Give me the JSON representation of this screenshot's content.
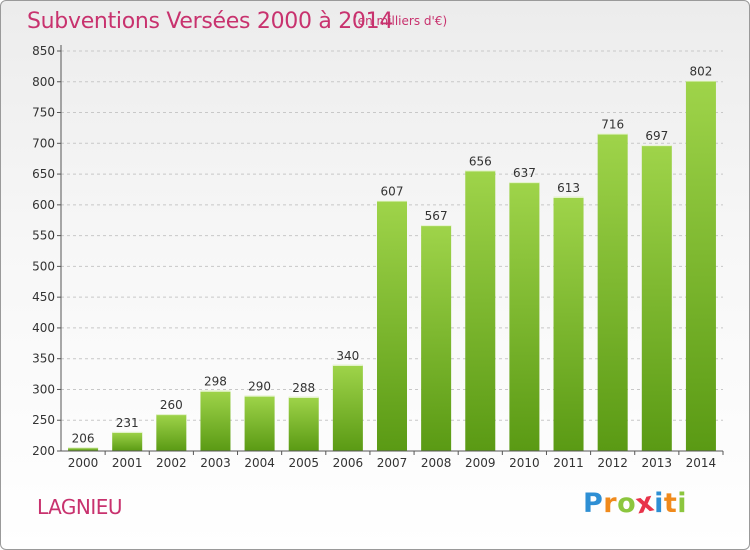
{
  "header": {
    "title": "Subventions Versées 2000 à 2014",
    "subtitle": "(en milliers d'€)"
  },
  "footer": {
    "place": "LAGNIEU",
    "logo": {
      "letters": [
        "P",
        "r",
        "o",
        "x",
        "i",
        "t",
        "i"
      ],
      "colors": [
        "#2e8fd4",
        "#f08a1c",
        "#8cc63e",
        "#e8334a",
        "#2e8fd4",
        "#f08a1c",
        "#8cc63e"
      ]
    }
  },
  "colors": {
    "bar_top": "#9fd44a",
    "bar_bottom": "#5a9a14",
    "value_label": "#333333",
    "axis": "#555555",
    "grid": "#c8c8c8",
    "brand": "#c8326e"
  },
  "chart_data": {
    "type": "bar",
    "title": "Subventions Versées 2000 à 2014",
    "subtitle": "(en milliers d'€)",
    "categories": [
      "2000",
      "2001",
      "2002",
      "2003",
      "2004",
      "2005",
      "2006",
      "2007",
      "2008",
      "2009",
      "2010",
      "2011",
      "2012",
      "2013",
      "2014"
    ],
    "values": [
      206,
      231,
      260,
      298,
      290,
      288,
      340,
      607,
      567,
      656,
      637,
      613,
      716,
      697,
      802
    ],
    "data_labels": [
      "206",
      "231",
      "260",
      "298",
      "290",
      "288",
      "340",
      "607",
      "567",
      "656",
      "637",
      "613",
      "716",
      "697",
      "802"
    ],
    "y_ticks": [
      "200",
      "250",
      "300",
      "350",
      "400",
      "450",
      "500",
      "550",
      "600",
      "650",
      "700",
      "750",
      "800",
      "850"
    ],
    "ylim": [
      200,
      850
    ],
    "xlabel": "",
    "ylabel": "",
    "grid": "horizontal dashed",
    "legend": "none"
  }
}
